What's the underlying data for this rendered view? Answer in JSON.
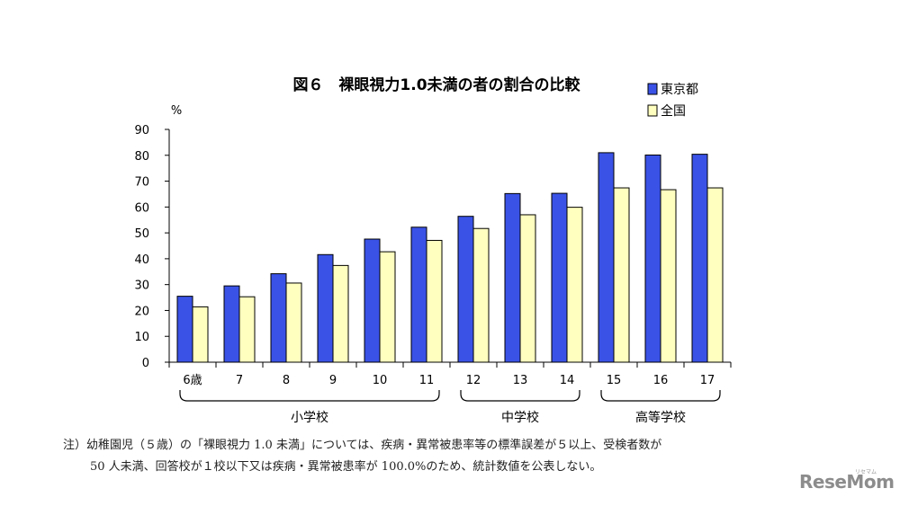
{
  "chart_data": {
    "type": "bar",
    "title": "図６　裸眼視力1.0未満の者の割合の比較",
    "ylabel": "%",
    "ylim": [
      0,
      90
    ],
    "yticks": [
      0,
      10,
      20,
      30,
      40,
      50,
      60,
      70,
      80,
      90
    ],
    "categories": [
      "6歳",
      "7",
      "8",
      "9",
      "10",
      "11",
      "12",
      "13",
      "14",
      "15",
      "16",
      "17"
    ],
    "series": [
      {
        "name": "東京都",
        "color": "#3a52e6",
        "values": [
          25.5,
          29.5,
          34.2,
          41.6,
          47.6,
          52.2,
          56.4,
          65.2,
          65.3,
          81.0,
          80.1,
          80.4
        ]
      },
      {
        "name": "全国",
        "color": "#ffffc0",
        "values": [
          21.4,
          25.3,
          30.6,
          37.4,
          42.7,
          47.1,
          51.7,
          57.0,
          59.9,
          67.4,
          66.7,
          67.4
        ]
      }
    ],
    "legend_position": "top-right",
    "grid": false,
    "groups": [
      {
        "label": "小学校",
        "from": 0,
        "to": 5
      },
      {
        "label": "中学校",
        "from": 6,
        "to": 8
      },
      {
        "label": "高等学校",
        "from": 9,
        "to": 11
      }
    ]
  },
  "note": {
    "line1": "注）幼稚園児（５歳）の「裸眼視力 1.0 未満」については、疾病・異常被患率等の標準誤差が５以上、受検者数が",
    "line2": "50 人未満、回答校が１校以下又は疾病・異常被患率が 100.0%のため、統計数値を公表しない。"
  },
  "brand": {
    "text": "ReseMom",
    "sub": "リセマム"
  }
}
